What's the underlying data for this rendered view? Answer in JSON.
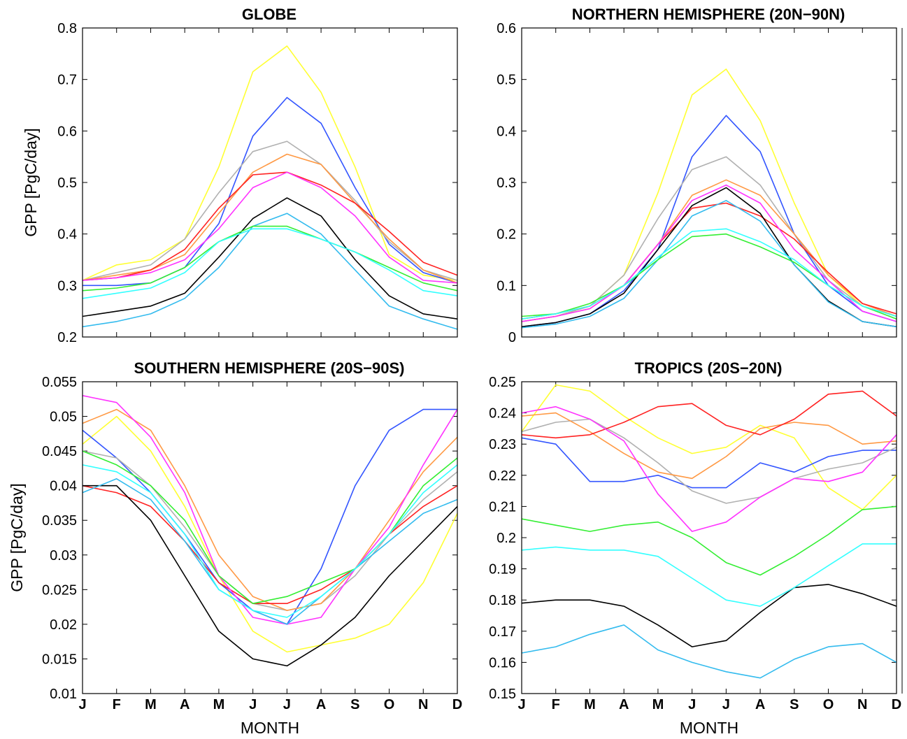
{
  "chart_data": [
    {
      "type": "line",
      "title": "GLOBE",
      "xlabel": "",
      "ylabel": "GPP [PgC/day]",
      "categories": [
        "J",
        "F",
        "M",
        "A",
        "M",
        "J",
        "J",
        "A",
        "S",
        "O",
        "N",
        "D"
      ],
      "ylim": [
        0.2,
        0.8
      ],
      "yticks": [
        0.2,
        0.3,
        0.4,
        0.5,
        0.6,
        0.7,
        0.8
      ],
      "ytick_labels": [
        "0.2",
        "0.3",
        "0.4",
        "0.5",
        "0.6",
        "0.7",
        "0.8"
      ],
      "grid": false,
      "series": [
        {
          "color": "#ffff33",
          "values": [
            0.31,
            0.34,
            0.35,
            0.39,
            0.53,
            0.715,
            0.765,
            0.675,
            0.53,
            0.36,
            0.32,
            0.31
          ]
        },
        {
          "color": "#3355ff",
          "values": [
            0.3,
            0.3,
            0.305,
            0.335,
            0.42,
            0.59,
            0.665,
            0.615,
            0.49,
            0.38,
            0.325,
            0.305
          ]
        },
        {
          "color": "#b0b0b0",
          "values": [
            0.31,
            0.325,
            0.34,
            0.39,
            0.48,
            0.56,
            0.58,
            0.535,
            0.465,
            0.385,
            0.33,
            0.31
          ]
        },
        {
          "color": "#ff9944",
          "values": [
            0.31,
            0.32,
            0.33,
            0.36,
            0.44,
            0.52,
            0.555,
            0.535,
            0.46,
            0.39,
            0.33,
            0.305
          ]
        },
        {
          "color": "#ff2222",
          "values": [
            0.31,
            0.315,
            0.33,
            0.37,
            0.45,
            0.515,
            0.52,
            0.495,
            0.46,
            0.405,
            0.345,
            0.32
          ]
        },
        {
          "color": "#ff33ff",
          "values": [
            0.31,
            0.315,
            0.325,
            0.35,
            0.41,
            0.49,
            0.52,
            0.49,
            0.435,
            0.355,
            0.31,
            0.305
          ]
        },
        {
          "color": "#000000",
          "values": [
            0.24,
            0.25,
            0.26,
            0.285,
            0.355,
            0.43,
            0.47,
            0.435,
            0.35,
            0.28,
            0.245,
            0.235
          ]
        },
        {
          "color": "#33bbee",
          "values": [
            0.22,
            0.23,
            0.245,
            0.275,
            0.335,
            0.415,
            0.44,
            0.4,
            0.33,
            0.26,
            0.235,
            0.215
          ]
        },
        {
          "color": "#33ee33",
          "values": [
            0.29,
            0.295,
            0.305,
            0.335,
            0.385,
            0.415,
            0.415,
            0.39,
            0.365,
            0.335,
            0.305,
            0.29
          ]
        },
        {
          "color": "#33ffff",
          "values": [
            0.275,
            0.285,
            0.295,
            0.325,
            0.385,
            0.41,
            0.41,
            0.39,
            0.365,
            0.33,
            0.29,
            0.28
          ]
        }
      ]
    },
    {
      "type": "line",
      "title": "NORTHERN HEMISPHERE (20N−90N)",
      "xlabel": "",
      "ylabel": "",
      "categories": [
        "J",
        "F",
        "M",
        "A",
        "M",
        "J",
        "J",
        "A",
        "S",
        "O",
        "N",
        "D"
      ],
      "ylim": [
        0,
        0.6
      ],
      "yticks": [
        0,
        0.1,
        0.2,
        0.3,
        0.4,
        0.5,
        0.6
      ],
      "ytick_labels": [
        "0",
        "0.1",
        "0.2",
        "0.3",
        "0.4",
        "0.5",
        "0.6"
      ],
      "grid": false,
      "series": [
        {
          "color": "#ffff33",
          "values": [
            0.03,
            0.04,
            0.06,
            0.12,
            0.28,
            0.47,
            0.52,
            0.42,
            0.26,
            0.12,
            0.06,
            0.04
          ]
        },
        {
          "color": "#3355ff",
          "values": [
            0.02,
            0.028,
            0.045,
            0.09,
            0.17,
            0.35,
            0.43,
            0.36,
            0.2,
            0.1,
            0.05,
            0.03
          ]
        },
        {
          "color": "#b0b0b0",
          "values": [
            0.03,
            0.04,
            0.06,
            0.12,
            0.23,
            0.325,
            0.35,
            0.295,
            0.2,
            0.11,
            0.06,
            0.04
          ]
        },
        {
          "color": "#ff9944",
          "values": [
            0.03,
            0.04,
            0.055,
            0.1,
            0.18,
            0.275,
            0.305,
            0.275,
            0.2,
            0.12,
            0.065,
            0.04
          ]
        },
        {
          "color": "#ff2222",
          "values": [
            0.035,
            0.045,
            0.06,
            0.1,
            0.18,
            0.25,
            0.26,
            0.235,
            0.19,
            0.125,
            0.065,
            0.045
          ]
        },
        {
          "color": "#ff33ff",
          "values": [
            0.03,
            0.04,
            0.055,
            0.1,
            0.18,
            0.265,
            0.295,
            0.26,
            0.17,
            0.11,
            0.05,
            0.03
          ]
        },
        {
          "color": "#000000",
          "values": [
            0.02,
            0.028,
            0.045,
            0.085,
            0.17,
            0.255,
            0.29,
            0.24,
            0.14,
            0.07,
            0.03,
            0.02
          ]
        },
        {
          "color": "#33bbee",
          "values": [
            0.018,
            0.025,
            0.04,
            0.075,
            0.15,
            0.235,
            0.265,
            0.225,
            0.14,
            0.068,
            0.03,
            0.02
          ]
        },
        {
          "color": "#33ee33",
          "values": [
            0.04,
            0.045,
            0.065,
            0.1,
            0.15,
            0.195,
            0.2,
            0.175,
            0.145,
            0.1,
            0.06,
            0.035
          ]
        },
        {
          "color": "#33ffff",
          "values": [
            0.035,
            0.045,
            0.06,
            0.1,
            0.155,
            0.205,
            0.21,
            0.185,
            0.15,
            0.1,
            0.06,
            0.04
          ]
        }
      ]
    },
    {
      "type": "line",
      "title": "SOUTHERN HEMISPHERE (20S−90S)",
      "xlabel": "MONTH",
      "ylabel": "GPP [PgC/day]",
      "categories": [
        "J",
        "F",
        "M",
        "A",
        "M",
        "J",
        "J",
        "A",
        "S",
        "O",
        "N",
        "D"
      ],
      "ylim": [
        0.01,
        0.055
      ],
      "yticks": [
        0.01,
        0.015,
        0.02,
        0.025,
        0.03,
        0.035,
        0.04,
        0.045,
        0.05,
        0.055
      ],
      "ytick_labels": [
        "0.01",
        "0.015",
        "0.02",
        "0.025",
        "0.03",
        "0.035",
        "0.04",
        "0.045",
        "0.05",
        "0.055"
      ],
      "grid": false,
      "series": [
        {
          "color": "#ffff33",
          "values": [
            0.046,
            0.05,
            0.045,
            0.037,
            0.027,
            0.019,
            0.016,
            0.017,
            0.018,
            0.02,
            0.026,
            0.036
          ]
        },
        {
          "color": "#3355ff",
          "values": [
            0.048,
            0.044,
            0.039,
            0.033,
            0.026,
            0.022,
            0.02,
            0.028,
            0.04,
            0.048,
            0.051,
            0.051
          ]
        },
        {
          "color": "#b0b0b0",
          "values": [
            0.045,
            0.044,
            0.04,
            0.034,
            0.027,
            0.023,
            0.022,
            0.023,
            0.027,
            0.033,
            0.038,
            0.042
          ]
        },
        {
          "color": "#ff9944",
          "values": [
            0.049,
            0.051,
            0.048,
            0.04,
            0.03,
            0.024,
            0.022,
            0.023,
            0.028,
            0.035,
            0.042,
            0.047
          ]
        },
        {
          "color": "#ff2222",
          "values": [
            0.04,
            0.039,
            0.037,
            0.032,
            0.026,
            0.023,
            0.023,
            0.025,
            0.028,
            0.033,
            0.037,
            0.04
          ]
        },
        {
          "color": "#ff33ff",
          "values": [
            0.053,
            0.052,
            0.047,
            0.039,
            0.027,
            0.021,
            0.02,
            0.021,
            0.028,
            0.034,
            0.043,
            0.051
          ]
        },
        {
          "color": "#000000",
          "values": [
            0.04,
            0.04,
            0.035,
            0.027,
            0.019,
            0.015,
            0.014,
            0.017,
            0.021,
            0.027,
            0.032,
            0.037
          ]
        },
        {
          "color": "#33bbee",
          "values": [
            0.039,
            0.041,
            0.038,
            0.032,
            0.025,
            0.022,
            0.02,
            0.024,
            0.028,
            0.032,
            0.036,
            0.038
          ]
        },
        {
          "color": "#33ee33",
          "values": [
            0.045,
            0.043,
            0.04,
            0.035,
            0.027,
            0.023,
            0.024,
            0.026,
            0.028,
            0.033,
            0.04,
            0.044
          ]
        },
        {
          "color": "#33ffff",
          "values": [
            0.043,
            0.042,
            0.039,
            0.033,
            0.025,
            0.022,
            0.021,
            0.024,
            0.028,
            0.033,
            0.039,
            0.043
          ]
        }
      ]
    },
    {
      "type": "line",
      "title": "TROPICS (20S−20N)",
      "xlabel": "MONTH",
      "ylabel": "",
      "categories": [
        "J",
        "F",
        "M",
        "A",
        "M",
        "J",
        "J",
        "A",
        "S",
        "O",
        "N",
        "D"
      ],
      "ylim": [
        0.15,
        0.25
      ],
      "yticks": [
        0.15,
        0.16,
        0.17,
        0.18,
        0.19,
        0.2,
        0.21,
        0.22,
        0.23,
        0.24,
        0.25
      ],
      "ytick_labels": [
        "0.15",
        "0.16",
        "0.17",
        "0.18",
        "0.19",
        "0.2",
        "0.21",
        "0.22",
        "0.23",
        "0.24",
        "0.25"
      ],
      "grid": false,
      "series": [
        {
          "color": "#ffff33",
          "values": [
            0.234,
            0.249,
            0.247,
            0.239,
            0.232,
            0.227,
            0.229,
            0.236,
            0.232,
            0.216,
            0.209,
            0.22
          ]
        },
        {
          "color": "#3355ff",
          "values": [
            0.232,
            0.23,
            0.218,
            0.218,
            0.22,
            0.216,
            0.216,
            0.224,
            0.221,
            0.226,
            0.228,
            0.228
          ]
        },
        {
          "color": "#b0b0b0",
          "values": [
            0.234,
            0.237,
            0.238,
            0.232,
            0.224,
            0.215,
            0.211,
            0.213,
            0.219,
            0.222,
            0.224,
            0.229
          ]
        },
        {
          "color": "#ff9944",
          "values": [
            0.239,
            0.24,
            0.234,
            0.227,
            0.221,
            0.219,
            0.226,
            0.235,
            0.237,
            0.236,
            0.23,
            0.231
          ]
        },
        {
          "color": "#ff2222",
          "values": [
            0.233,
            0.232,
            0.233,
            0.237,
            0.242,
            0.243,
            0.236,
            0.233,
            0.238,
            0.246,
            0.247,
            0.239
          ]
        },
        {
          "color": "#ff33ff",
          "values": [
            0.24,
            0.242,
            0.238,
            0.231,
            0.214,
            0.202,
            0.205,
            0.213,
            0.219,
            0.218,
            0.221,
            0.233
          ]
        },
        {
          "color": "#000000",
          "values": [
            0.179,
            0.18,
            0.18,
            0.178,
            0.172,
            0.165,
            0.167,
            0.176,
            0.184,
            0.185,
            0.182,
            0.178
          ]
        },
        {
          "color": "#33bbee",
          "values": [
            0.163,
            0.165,
            0.169,
            0.172,
            0.164,
            0.16,
            0.157,
            0.155,
            0.161,
            0.165,
            0.166,
            0.16
          ]
        },
        {
          "color": "#33ee33",
          "values": [
            0.206,
            0.204,
            0.202,
            0.204,
            0.205,
            0.2,
            0.192,
            0.188,
            0.194,
            0.201,
            0.209,
            0.21
          ]
        },
        {
          "color": "#33ffff",
          "values": [
            0.196,
            0.197,
            0.196,
            0.196,
            0.194,
            0.187,
            0.18,
            0.178,
            0.184,
            0.191,
            0.198,
            0.198
          ]
        }
      ]
    }
  ]
}
